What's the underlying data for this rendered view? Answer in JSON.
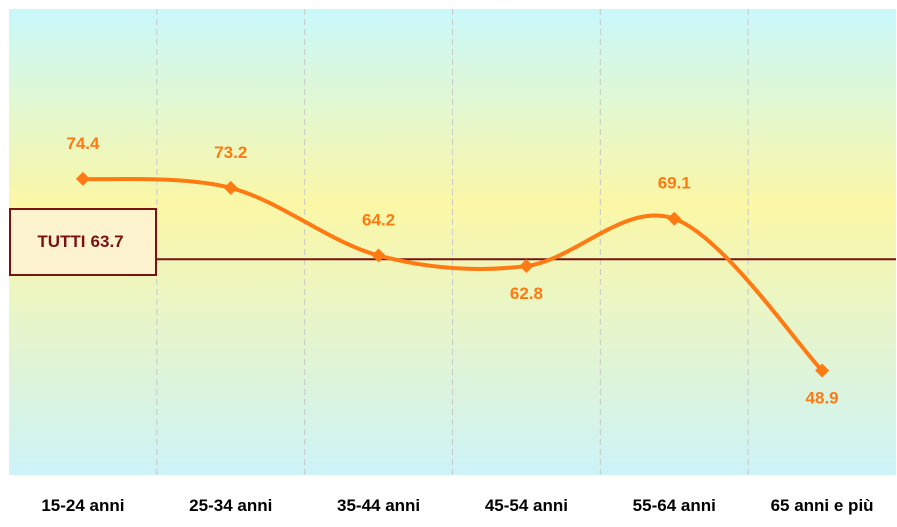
{
  "chart_data": {
    "type": "line",
    "categories": [
      "15-24 anni",
      "25-34 anni",
      "35-44 anni",
      "45-54 anni",
      "55-64 anni",
      "65 anni e più"
    ],
    "values": [
      74.4,
      73.2,
      64.2,
      62.8,
      69.1,
      48.9
    ],
    "reference_line": {
      "label": "TUTTI",
      "value": 63.7
    },
    "ylim": [
      35,
      97
    ],
    "smooth": true,
    "grid": "vertical dashed",
    "colors": {
      "series": "#ff7a12",
      "reference": "#7a1212",
      "bg_top": "#c9f8fb",
      "bg_mid": "#fbf7a6",
      "bg_bottom": "#cdf3f8"
    }
  }
}
